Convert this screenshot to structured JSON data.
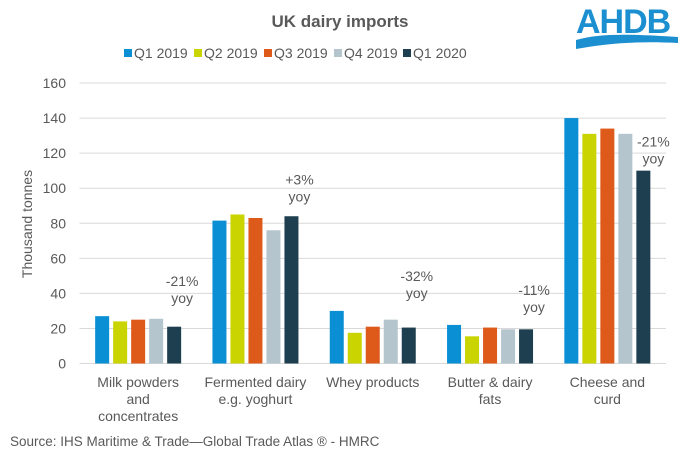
{
  "logo": {
    "text": "AHDB",
    "color": "#1b8fcf"
  },
  "source": "Source: IHS Maritime & Trade—Global Trade Atlas ®  - HMRC",
  "chart_data": {
    "type": "bar",
    "title": "UK dairy imports",
    "xlabel": "",
    "ylabel": "Thousand tonnes",
    "ylim": [
      0,
      160
    ],
    "yticks": [
      0,
      20,
      40,
      60,
      80,
      100,
      120,
      140,
      160
    ],
    "grid": true,
    "legend_position": "top",
    "categories": [
      [
        "Milk powders",
        "and",
        "concentrates"
      ],
      [
        "Fermented dairy",
        "e.g. yoghurt"
      ],
      [
        "Whey products"
      ],
      [
        "Butter & dairy",
        "fats"
      ],
      [
        "Cheese and",
        "curd"
      ]
    ],
    "series": [
      {
        "name": "Q1 2019",
        "color": "#0b8fd4",
        "values": [
          27,
          81.5,
          30,
          22,
          140
        ]
      },
      {
        "name": "Q2 2019",
        "color": "#c9d400",
        "values": [
          24,
          85,
          17.5,
          15.5,
          131
        ]
      },
      {
        "name": "Q3 2019",
        "color": "#de5a1b",
        "values": [
          25,
          83,
          21,
          20.5,
          134
        ]
      },
      {
        "name": "Q4 2019",
        "color": "#b4c5cd",
        "values": [
          25.5,
          76,
          25,
          19.5,
          131
        ]
      },
      {
        "name": "Q1 2020",
        "color": "#1e3f4f",
        "values": [
          21,
          84,
          20.5,
          19.5,
          110
        ]
      }
    ],
    "annotations": [
      {
        "category_index": 0,
        "lines": [
          "-21%",
          "yoy"
        ]
      },
      {
        "category_index": 1,
        "lines": [
          "+3%",
          "yoy"
        ]
      },
      {
        "category_index": 2,
        "lines": [
          "-32%",
          "yoy"
        ]
      },
      {
        "category_index": 3,
        "lines": [
          "-11%",
          "yoy"
        ]
      },
      {
        "category_index": 4,
        "lines": [
          "-21%",
          "yoy"
        ]
      }
    ]
  }
}
